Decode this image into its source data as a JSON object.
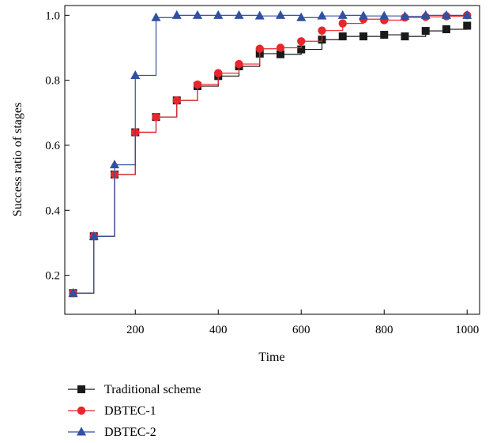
{
  "chart_data": {
    "type": "line",
    "step": true,
    "xlabel": "Time",
    "ylabel": "Success ratio of stages",
    "xlim": [
      30,
      1030
    ],
    "ylim": [
      0.08,
      1.03
    ],
    "xticks": [
      200,
      400,
      600,
      800,
      1000
    ],
    "yticks": [
      0.2,
      0.4,
      0.6,
      0.8,
      1.0
    ],
    "xtick_labels": [
      "200",
      "400",
      "600",
      "800",
      "1000"
    ],
    "ytick_labels": [
      "0.2",
      "0.4",
      "0.6",
      "0.8",
      "1.0"
    ],
    "grid": false,
    "legend_position": "bottom-left, below plot",
    "x": [
      50,
      100,
      150,
      200,
      250,
      300,
      350,
      400,
      450,
      500,
      550,
      600,
      650,
      700,
      750,
      800,
      850,
      900,
      950,
      1000
    ],
    "series": [
      {
        "name": "Traditional scheme",
        "color": "#1a1a1a",
        "marker": "square",
        "values": [
          0.145,
          0.32,
          0.51,
          0.64,
          0.687,
          0.738,
          0.782,
          0.813,
          0.843,
          0.882,
          0.88,
          0.895,
          0.925,
          0.935,
          0.935,
          0.94,
          0.935,
          0.952,
          0.957,
          0.968
        ]
      },
      {
        "name": "DBTEC-1",
        "color": "#e8262c",
        "marker": "circle",
        "values": [
          0.145,
          0.32,
          0.51,
          0.64,
          0.687,
          0.738,
          0.787,
          0.822,
          0.85,
          0.897,
          0.9,
          0.92,
          0.953,
          0.975,
          0.988,
          0.985,
          0.993,
          0.995,
          0.997,
          1.0
        ]
      },
      {
        "name": "DBTEC-2",
        "color": "#3050a0",
        "marker": "triangle",
        "values": [
          0.145,
          0.32,
          0.54,
          0.815,
          0.993,
          1.0,
          1.0,
          1.0,
          1.0,
          0.998,
          1.0,
          0.993,
          0.998,
          1.0,
          0.998,
          0.998,
          0.997,
          1.0,
          1.0,
          1.0
        ]
      }
    ]
  }
}
